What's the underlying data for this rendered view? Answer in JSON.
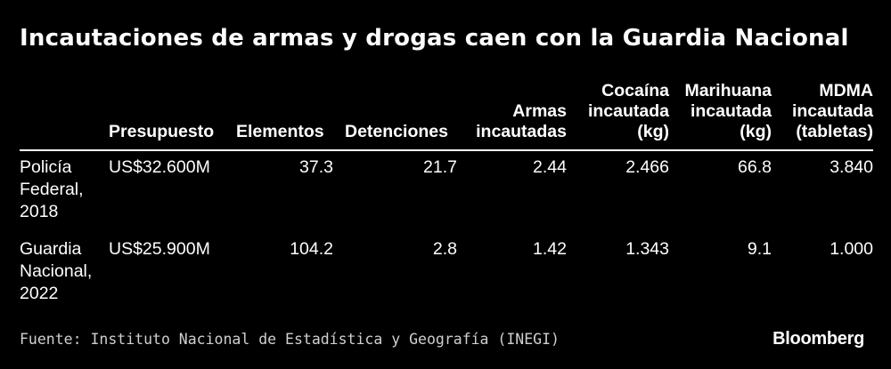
{
  "title": "Incautaciones de armas y drogas caen con la Guardia Nacional",
  "chart_data": {
    "type": "table",
    "title": "Incautaciones de armas y drogas caen con la Guardia Nacional",
    "columns": [
      "",
      "Presupuesto",
      "Elementos",
      "Detenciones",
      "Armas\nincautadas",
      "Cocaína\nincautada\n(kg)",
      "Marihuana\nincautada\n(kg)",
      "MDMA\nincautada\n(tabletas)"
    ],
    "rows": [
      [
        "Policía\nFederal,\n2018",
        "US$32.600M",
        "37.3",
        "21.7",
        "2.44",
        "2.466",
        "66.8",
        "3.840"
      ],
      [
        "Guardia\nNacional,\n2022",
        "US$25.900M",
        "104.2",
        "2.8",
        "1.42",
        "1.343",
        "9.1",
        "1.000"
      ]
    ]
  },
  "footer": {
    "source": "Fuente: Instituto Nacional de Estadística y Geografía (INEGI)",
    "brand": "Bloomberg"
  }
}
